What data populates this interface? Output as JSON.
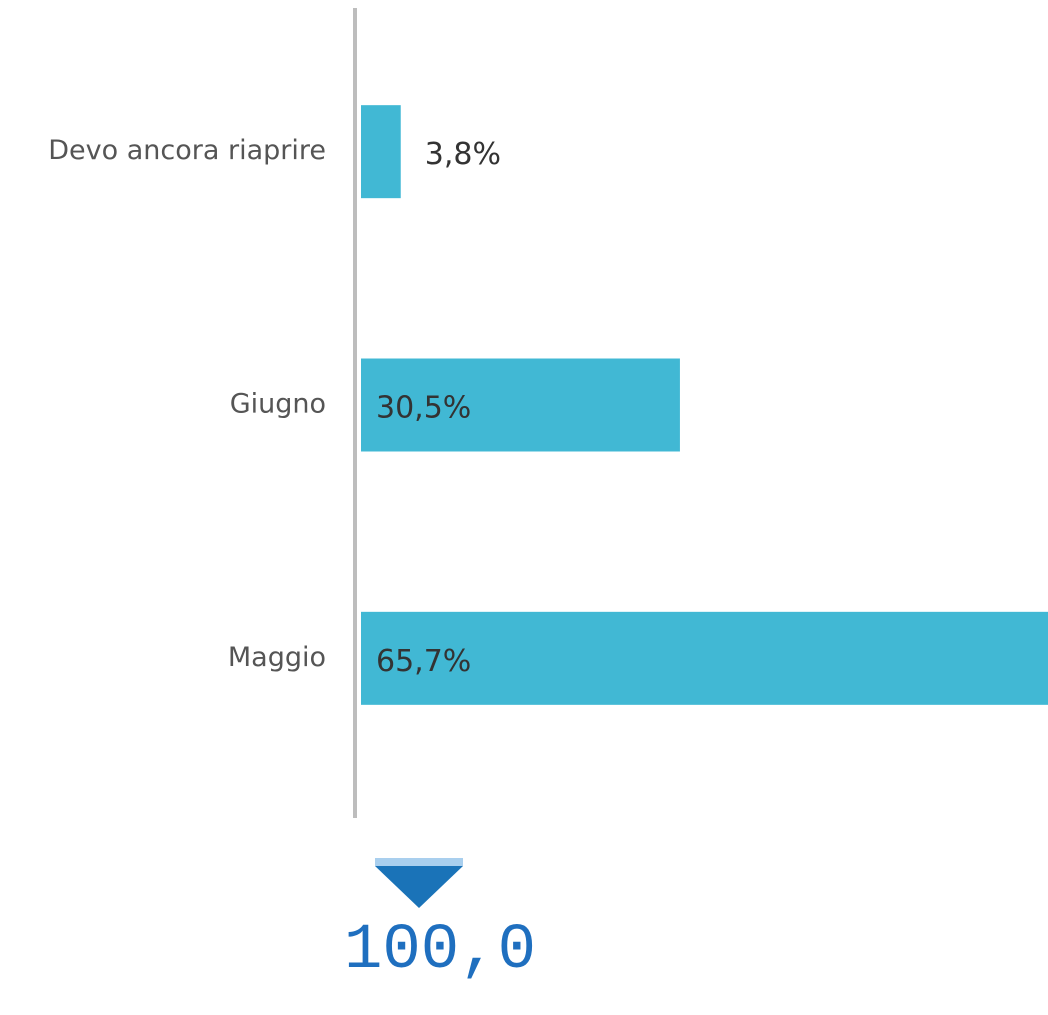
{
  "chart_data": {
    "type": "bar",
    "orientation": "horizontal",
    "categories": [
      "Devo ancora riaprire",
      "Giugno",
      "Maggio"
    ],
    "values": [
      3.8,
      30.5,
      65.7
    ],
    "value_labels": [
      "3,8%",
      "30,5%",
      "65,7%"
    ],
    "color": "#41b8d4",
    "annotation": "100,0"
  }
}
